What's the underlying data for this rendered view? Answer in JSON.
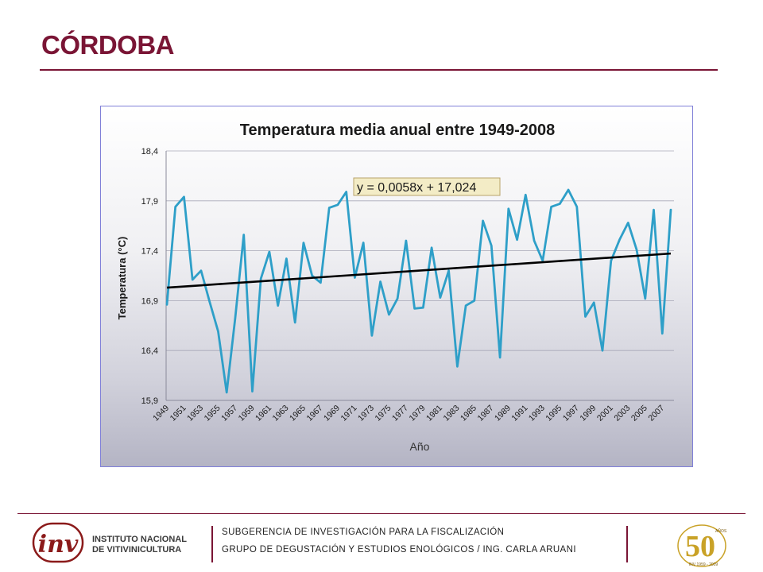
{
  "slide": {
    "title": "CÓRDOBA",
    "accent_color": "#7a1535"
  },
  "chart_data": {
    "type": "line",
    "title": "Temperatura media anual entre 1949-2008",
    "xlabel": "Año",
    "ylabel": "Temperatura (°C)",
    "ylim": [
      15.9,
      18.4
    ],
    "yticks": [
      "15,9",
      "16,4",
      "16,9",
      "17,4",
      "17,9",
      "18,4"
    ],
    "x": [
      1949,
      1950,
      1951,
      1952,
      1953,
      1954,
      1955,
      1956,
      1957,
      1958,
      1959,
      1960,
      1961,
      1962,
      1963,
      1964,
      1965,
      1966,
      1967,
      1968,
      1969,
      1970,
      1971,
      1972,
      1973,
      1974,
      1975,
      1976,
      1977,
      1978,
      1979,
      1980,
      1981,
      1982,
      1983,
      1984,
      1985,
      1986,
      1987,
      1988,
      1989,
      1990,
      1991,
      1992,
      1993,
      1994,
      1995,
      1996,
      1997,
      1998,
      1999,
      2000,
      2001,
      2002,
      2003,
      2004,
      2005,
      2006,
      2007,
      2008
    ],
    "xtick_labels": [
      "1949",
      "1951",
      "1953",
      "1955",
      "1957",
      "1959",
      "1961",
      "1963",
      "1965",
      "1967",
      "1969",
      "1971",
      "1973",
      "1975",
      "1977",
      "1979",
      "1981",
      "1983",
      "1985",
      "1987",
      "1989",
      "1991",
      "1993",
      "1995",
      "1997",
      "1999",
      "2001",
      "2003",
      "2005",
      "2007"
    ],
    "series": [
      {
        "color": "#2e9fc8",
        "values": [
          16.86,
          17.84,
          17.94,
          17.11,
          17.2,
          16.89,
          16.59,
          15.98,
          16.73,
          17.56,
          15.99,
          17.12,
          17.39,
          16.85,
          17.32,
          16.68,
          17.48,
          17.15,
          17.08,
          17.83,
          17.86,
          17.99,
          17.13,
          17.48,
          16.55,
          17.09,
          16.76,
          16.92,
          17.5,
          16.82,
          16.83,
          17.43,
          16.93,
          17.2,
          16.24,
          16.85,
          16.9,
          17.7,
          17.45,
          16.33,
          17.82,
          17.51,
          17.96,
          17.5,
          17.3,
          17.84,
          17.87,
          18.01,
          17.84,
          16.74,
          16.88,
          16.4,
          17.3,
          17.51,
          17.68,
          17.41,
          16.92,
          17.81,
          16.57,
          17.81
        ]
      }
    ],
    "trendline": {
      "equation": "y = 0,0058x + 17,024",
      "slope": 0.0058,
      "intercept": 17.024,
      "color": "#000000"
    },
    "grid": true,
    "legend": "none"
  },
  "footer": {
    "org_name_line1": "INSTITUTO NACIONAL",
    "org_name_line2": "DE VITIVINICULTURA",
    "line1": "SUBGERENCIA DE INVESTIGACIÓN PARA LA FISCALIZACIÓN",
    "line2": "GRUPO DE DEGUSTACIÓN Y ESTUDIOS ENOLÓGICOS / ING. CARLA ARUANI",
    "anniversary_number": "50",
    "anniversary_word": "AÑOS",
    "anniversary_years": "INV 1959 - 2009",
    "logo_color": "#8b1a1a",
    "gold_color": "#c9a227"
  }
}
